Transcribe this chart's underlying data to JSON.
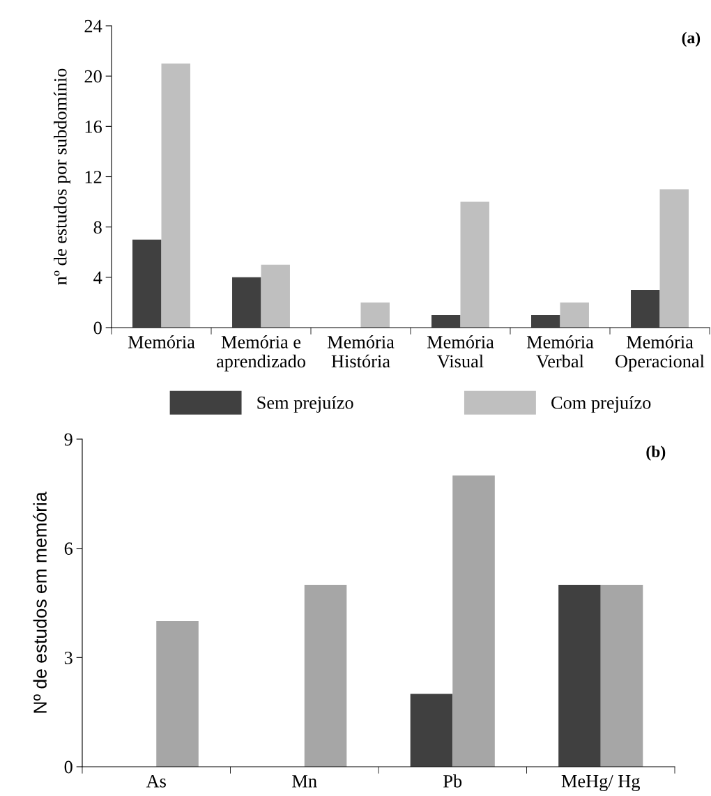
{
  "chart_data": [
    {
      "type": "bar",
      "ylabel": "nº de estudos por subdomínio",
      "categories": [
        "Memória",
        "Memória e\naprendizado",
        "Memória\nHistória",
        "Memória\nVisual",
        "Memória\nVerbal",
        "Memória\nOperacional"
      ],
      "series": [
        {
          "name": "Sem prejuízo",
          "color": "#404040",
          "values": [
            7,
            4,
            0,
            1,
            1,
            3
          ]
        },
        {
          "name": "Com prejuízo",
          "color": "#bfbfbf",
          "values": [
            21,
            5,
            2,
            10,
            2,
            11
          ]
        }
      ],
      "ylim": [
        0,
        24
      ],
      "yticks": [
        0,
        4,
        8,
        12,
        16,
        20,
        24
      ],
      "grid": false,
      "legend": "bottom",
      "annotations": [
        "(a)"
      ]
    },
    {
      "type": "bar",
      "ylabel": "Nº de estudos em memória",
      "categories": [
        "As",
        "Mn",
        "Pb",
        "MeHg/ Hg"
      ],
      "series": [
        {
          "color": "#404040",
          "values": [
            0,
            0,
            2,
            5
          ]
        },
        {
          "color": "#a6a6a6",
          "values": [
            4,
            5,
            8,
            5
          ]
        }
      ],
      "ylim": [
        0,
        9
      ],
      "yticks": [
        0,
        3,
        6,
        9
      ],
      "grid": false,
      "legend": false,
      "annotations": [
        "(b)"
      ]
    }
  ]
}
